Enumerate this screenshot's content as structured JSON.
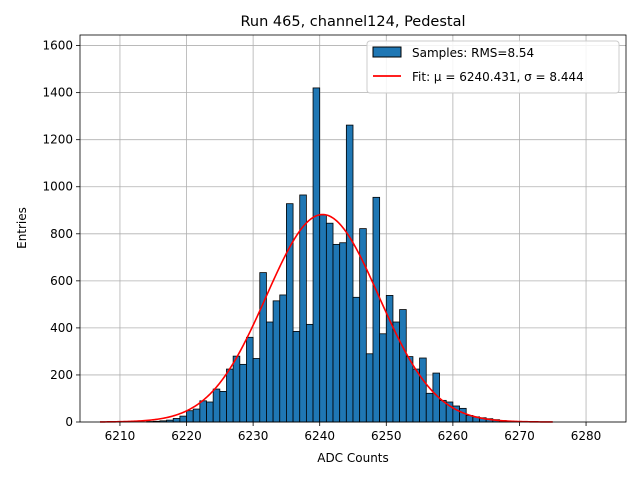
{
  "chart_data": {
    "type": "bar",
    "title": "Run 465, channel124, Pedestal",
    "xlabel": "ADC Counts",
    "ylabel": "Entries",
    "xlim": [
      6204,
      6286
    ],
    "ylim": [
      0,
      1645
    ],
    "xticks": [
      6210,
      6220,
      6230,
      6240,
      6250,
      6260,
      6270,
      6280
    ],
    "yticks": [
      0,
      200,
      400,
      600,
      800,
      1000,
      1200,
      1400,
      1600
    ],
    "grid": true,
    "legend_position": "top-right",
    "bin_width": 1,
    "histogram": {
      "name": "Samples: RMS=8.54",
      "color": "#1f77b4",
      "bins": [
        [
          6214,
          2
        ],
        [
          6215,
          3
        ],
        [
          6216,
          5
        ],
        [
          6217,
          8
        ],
        [
          6218,
          15
        ],
        [
          6219,
          25
        ],
        [
          6220,
          48
        ],
        [
          6221,
          55
        ],
        [
          6222,
          90
        ],
        [
          6223,
          85
        ],
        [
          6224,
          140
        ],
        [
          6225,
          130
        ],
        [
          6226,
          225
        ],
        [
          6227,
          280
        ],
        [
          6228,
          245
        ],
        [
          6229,
          360
        ],
        [
          6230,
          270
        ],
        [
          6231,
          635
        ],
        [
          6232,
          425
        ],
        [
          6233,
          515
        ],
        [
          6234,
          540
        ],
        [
          6235,
          928
        ],
        [
          6236,
          385
        ],
        [
          6237,
          965
        ],
        [
          6238,
          415
        ],
        [
          6239,
          1420
        ],
        [
          6240,
          880
        ],
        [
          6241,
          845
        ],
        [
          6242,
          755
        ],
        [
          6243,
          762
        ],
        [
          6244,
          1262
        ],
        [
          6245,
          530
        ],
        [
          6246,
          822
        ],
        [
          6247,
          290
        ],
        [
          6248,
          955
        ],
        [
          6249,
          375
        ],
        [
          6250,
          538
        ],
        [
          6251,
          425
        ],
        [
          6252,
          478
        ],
        [
          6253,
          278
        ],
        [
          6254,
          225
        ],
        [
          6255,
          272
        ],
        [
          6256,
          122
        ],
        [
          6257,
          208
        ],
        [
          6258,
          92
        ],
        [
          6259,
          85
        ],
        [
          6260,
          68
        ],
        [
          6261,
          58
        ],
        [
          6262,
          28
        ],
        [
          6263,
          22
        ],
        [
          6264,
          18
        ],
        [
          6265,
          14
        ],
        [
          6266,
          10
        ],
        [
          6267,
          6
        ],
        [
          6268,
          4
        ],
        [
          6269,
          2
        ]
      ]
    },
    "fit": {
      "name": "Fit: μ = 6240.431, σ = 8.444",
      "color": "#ff0000",
      "type": "gaussian",
      "mu": 6240.431,
      "sigma": 8.444,
      "amplitude": 882,
      "x_range": [
        6207,
        6275
      ]
    }
  }
}
